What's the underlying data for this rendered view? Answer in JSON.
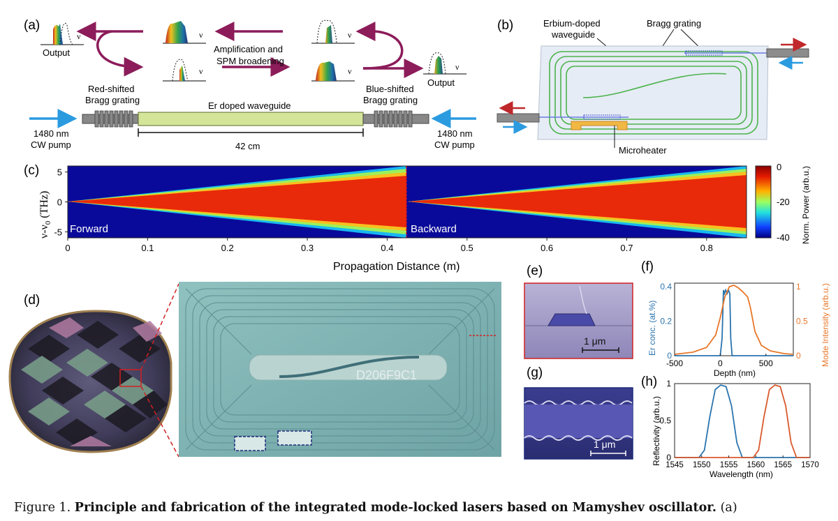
{
  "panel_labels": {
    "a": "(a)",
    "b": "(b)",
    "c": "(c)",
    "d": "(d)",
    "e": "(e)",
    "f": "(f)",
    "g": "(g)",
    "h": "(h)"
  },
  "panel_a": {
    "nu": "ν",
    "output_left": "Output",
    "output_right": "Output",
    "amplification": "Amplification and",
    "spm": "SPM broadening",
    "red_grating_1": "Red-shifted",
    "red_grating_2": "Bragg grating",
    "blue_grating_1": "Blue-shifted",
    "blue_grating_2": "Bragg grating",
    "waveguide": "Er doped waveguide",
    "length": "42 cm",
    "pump_left_1": "1480 nm",
    "pump_left_2": "CW pump",
    "pump_right_1": "1480 nm",
    "pump_right_2": "CW pump"
  },
  "panel_b": {
    "erbium_1": "Erbium-doped",
    "erbium_2": "waveguide",
    "bragg": "Bragg grating",
    "microheater": "Microheater"
  },
  "panel_c": {
    "forward": "Forward",
    "backward": "Backward",
    "xlabel": "Propagation Distance (m)",
    "ylabel_main": "ν-ν",
    "ylabel_sub": "0",
    "ylabel_unit": " (THz)",
    "yticks": [
      "5",
      "0",
      "-5"
    ],
    "xticks": [
      "0",
      "0.1",
      "0.2",
      "0.3",
      "0.4",
      "0.5",
      "0.6",
      "0.7",
      "0.8"
    ],
    "cbar_label": "Norm. Power (arb.u.)",
    "cbar_ticks": [
      "0",
      "-20",
      "-40"
    ]
  },
  "panel_d": {
    "chip_id": "D206F9C1"
  },
  "panel_e": {
    "scale": "1 μm"
  },
  "panel_g": {
    "scale": "1 μm"
  },
  "panel_f": {
    "xlabel": "Depth (nm)",
    "ylabel_left": "Er conc. (at.%)",
    "ylabel_right": "Mode Intensity (arb.u.)",
    "xticks": [
      "-500",
      "0",
      "500"
    ],
    "yticks_left": [
      "0",
      "0.2",
      "0.4"
    ],
    "yticks_right": [
      "0",
      "0.5",
      "1"
    ]
  },
  "panel_h": {
    "xlabel": "Wavelength (nm)",
    "ylabel": "Reflectivity (arb.u.)",
    "xticks": [
      "1545",
      "1550",
      "1555",
      "1560",
      "1565",
      "1570"
    ],
    "yticks": [
      "0",
      "0.5",
      "1"
    ]
  },
  "caption": {
    "prefix": "Figure 1.",
    "bold": "Principle and fabrication of the integrated mode-locked lasers based on Mamyshev oscillator.",
    "suffix": "(a)"
  },
  "colors": {
    "arrow_purple": "#8c1c5a",
    "pump_blue": "#2b9be0",
    "red_arrow": "#c0282b",
    "waveguide_green": "#d4e59a",
    "orange": "#e8772a",
    "steel_blue": "#2a73ad",
    "chip_cyan": "#7fb2b0"
  },
  "chart_data": [
    {
      "type": "line",
      "panel": "f",
      "xlim": [
        -500,
        800
      ],
      "xlabel": "Depth (nm)",
      "series": [
        {
          "name": "Er conc. (at.%)",
          "axis": "left",
          "color": "#2a73ad",
          "x": [
            -500,
            0,
            20,
            35,
            45,
            60,
            75,
            90,
            105,
            115,
            130,
            800
          ],
          "y": [
            0,
            0,
            0.1,
            0.38,
            0.36,
            0.38,
            0.36,
            0.38,
            0.36,
            0.1,
            0,
            0
          ]
        },
        {
          "name": "Mode Intensity (arb.u.)",
          "axis": "right",
          "color": "#e8772a",
          "x": [
            -500,
            -300,
            -150,
            -50,
            0,
            50,
            100,
            150,
            200,
            250,
            300,
            330,
            380,
            450,
            550,
            700,
            800
          ],
          "y": [
            0.02,
            0.05,
            0.12,
            0.3,
            0.55,
            0.85,
            1.0,
            1.02,
            0.98,
            0.92,
            0.85,
            0.7,
            0.35,
            0.15,
            0.07,
            0.03,
            0.02
          ]
        }
      ],
      "ylim_left": [
        0,
        0.42
      ],
      "ylim_right": [
        0,
        1.05
      ]
    },
    {
      "type": "line",
      "panel": "h",
      "xlim": [
        1545,
        1570
      ],
      "ylim": [
        0,
        1
      ],
      "xlabel": "Wavelength (nm)",
      "ylabel": "Reflectivity (arb.u.)",
      "series": [
        {
          "name": "",
          "color": "#2a73ad",
          "x": [
            1545,
            1549.5,
            1550.5,
            1551.5,
            1552.5,
            1553.5,
            1554.5,
            1555.5,
            1556.5,
            1557.5,
            1570
          ],
          "y": [
            0,
            0,
            0.1,
            0.55,
            0.92,
            0.98,
            0.96,
            0.7,
            0.2,
            0,
            0
          ]
        },
        {
          "name": "",
          "color": "#d9582c",
          "x": [
            1545,
            1559.5,
            1560.5,
            1561.5,
            1562.5,
            1563.5,
            1564.5,
            1565.5,
            1566.5,
            1567.5,
            1570
          ],
          "y": [
            0,
            0,
            0.1,
            0.55,
            0.92,
            0.98,
            0.96,
            0.7,
            0.2,
            0,
            0
          ]
        }
      ]
    },
    {
      "type": "heatmap",
      "panel": "c",
      "xlim": [
        0,
        0.85
      ],
      "ylim": [
        -6,
        6
      ],
      "xlabel": "Propagation Distance (m)",
      "colorbar_range": [
        -40,
        0
      ],
      "segments": [
        "Forward",
        "Backward"
      ]
    }
  ]
}
